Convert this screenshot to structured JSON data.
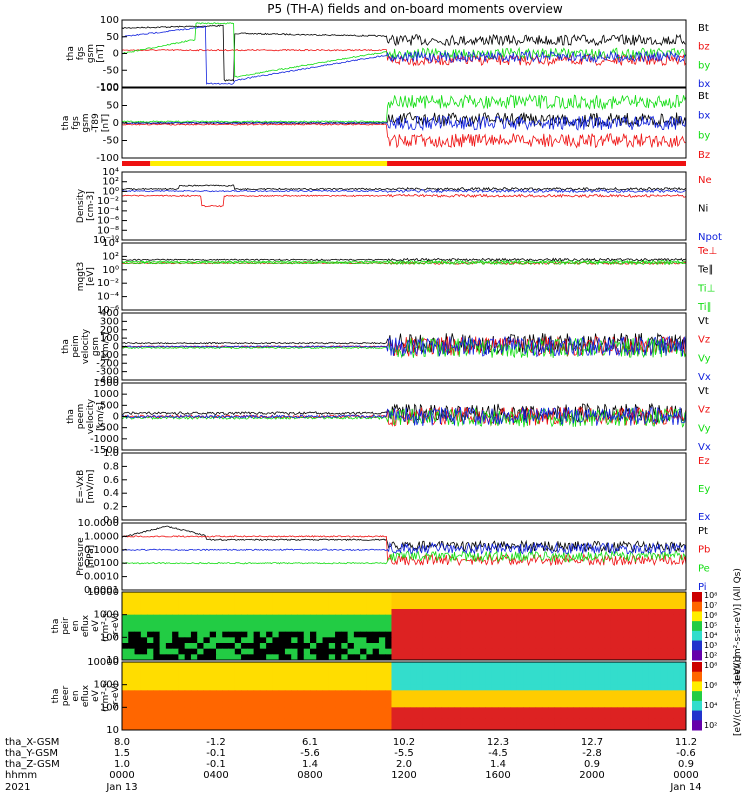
{
  "title": "P5 (TH-A) fields and on-board moments overview",
  "colors": {
    "black": "#000000",
    "red": "#ee1111",
    "green": "#11dd11",
    "blue": "#1122dd",
    "mode_yellow": "#ffee00",
    "mode_red": "#ee1111"
  },
  "chart_data": [
    {
      "type": "line",
      "panel": "fgs_gsm",
      "ylabel": [
        "tha",
        "fgs",
        "gsm",
        "[nT]"
      ],
      "ylim": [
        -100,
        100
      ],
      "yticks": [
        "100",
        "50",
        "0",
        "-50",
        "-100"
      ],
      "series": [
        {
          "name": "Bt",
          "color": "#000000"
        },
        {
          "name": "bz",
          "color": "#ee1111"
        },
        {
          "name": "by",
          "color": "#11dd11"
        },
        {
          "name": "bx",
          "color": "#1122dd"
        }
      ]
    },
    {
      "type": "line",
      "panel": "fgs_gsm_t89",
      "ylabel": [
        "tha",
        "fgs",
        "gsm",
        "-T89",
        "[nT]"
      ],
      "ylim": [
        -120,
        120
      ],
      "yticks": [
        "100",
        "50",
        "0",
        "-50",
        "-100"
      ],
      "series": [
        {
          "name": "Bt",
          "color": "#000000"
        },
        {
          "name": "bx",
          "color": "#1122dd"
        },
        {
          "name": "by",
          "color": "#11dd11"
        },
        {
          "name": "Bz",
          "color": "#ee1111"
        }
      ]
    },
    {
      "type": "line",
      "panel": "density",
      "ylabel": [
        "Density",
        "[cm-3]"
      ],
      "log": true,
      "yticks": [
        "10⁴",
        "10²",
        "10⁰",
        "10⁻²",
        "10⁻⁴",
        "10⁻⁶",
        "10⁻⁸",
        "10⁻¹⁰"
      ],
      "series": [
        {
          "name": "Ne",
          "color": "#ee1111"
        },
        {
          "name": "Ni",
          "color": "#000000"
        },
        {
          "name": "Npot",
          "color": "#1122dd"
        }
      ]
    },
    {
      "type": "line",
      "panel": "temperature",
      "ylabel": [
        "mqgt3",
        "[eV]"
      ],
      "log": true,
      "yticks": [
        "10⁴",
        "10²",
        "10⁰",
        "10⁻²",
        "10⁻⁴",
        "10⁻⁶"
      ],
      "series": [
        {
          "name": "Te⊥",
          "color": "#ee1111"
        },
        {
          "name": "Te∥",
          "color": "#000000"
        },
        {
          "name": "Ti⊥",
          "color": "#11dd11"
        },
        {
          "name": "Ti∥",
          "color": "#11dd11"
        }
      ]
    },
    {
      "type": "line",
      "panel": "peim_velocity",
      "ylabel": [
        "tha",
        "peim",
        "velocity",
        "gsm",
        "[km/s]"
      ],
      "ylim": [
        -400,
        400
      ],
      "yticks": [
        "400",
        "300",
        "200",
        "100",
        "0",
        "-100",
        "-200",
        "-300",
        "-400"
      ],
      "series": [
        {
          "name": "Vt",
          "color": "#000000"
        },
        {
          "name": "Vz",
          "color": "#ee1111"
        },
        {
          "name": "Vy",
          "color": "#11dd11"
        },
        {
          "name": "Vx",
          "color": "#1122dd"
        }
      ]
    },
    {
      "type": "line",
      "panel": "peem_velocity",
      "ylabel": [
        "tha",
        "peem",
        "velocity",
        "[km/s]"
      ],
      "ylim": [
        -1500,
        1500
      ],
      "yticks": [
        "1500",
        "1000",
        "500",
        "0",
        "-500",
        "-1000",
        "-1500"
      ],
      "series": [
        {
          "name": "Vt",
          "color": "#000000"
        },
        {
          "name": "Vz",
          "color": "#ee1111"
        },
        {
          "name": "Vy",
          "color": "#11dd11"
        },
        {
          "name": "Vx",
          "color": "#1122dd"
        }
      ]
    },
    {
      "type": "line",
      "panel": "e_field",
      "ylabel": [
        "E=-VxB",
        "[mV/m]"
      ],
      "ylim": [
        0,
        1
      ],
      "yticks": [
        "1.0",
        "0.8",
        "0.6",
        "0.4",
        "0.2",
        "0.0"
      ],
      "series": [
        {
          "name": "Ez",
          "color": "#ee1111"
        },
        {
          "name": "Ey",
          "color": "#11dd11"
        },
        {
          "name": "Ex",
          "color": "#1122dd"
        }
      ]
    },
    {
      "type": "line",
      "panel": "pressure",
      "ylabel": [
        "Pressure",
        "[nPa]"
      ],
      "log": true,
      "yticks": [
        "10.0000",
        "1.0000",
        "0.1000",
        "0.0100",
        "0.0010",
        "0.0001"
      ],
      "series": [
        {
          "name": "Pt",
          "color": "#000000"
        },
        {
          "name": "Pb",
          "color": "#ee1111"
        },
        {
          "name": "Pe",
          "color": "#11dd11"
        },
        {
          "name": "Pi",
          "color": "#1122dd"
        }
      ]
    },
    {
      "type": "heatmap",
      "panel": "peir_en_eflux",
      "ylabel": [
        "tha",
        "peir",
        "en",
        "eflux",
        "eV",
        "(cm²-s-",
        "sr-eV)"
      ],
      "log": true,
      "yticks": [
        "10000",
        "1000",
        "100",
        "10"
      ],
      "colorbar_ticks": [
        "10⁸",
        "10⁷",
        "10⁶",
        "10⁵",
        "10⁴",
        "10³",
        "10²"
      ],
      "colorbar_label": "[eV/(cm²-s-sr-eV)] (All Qs)"
    },
    {
      "type": "heatmap",
      "panel": "peer_en_eflux",
      "ylabel": [
        "tha",
        "peer",
        "en",
        "eflux",
        "eV",
        "(cm²-s-",
        "sr-eV)"
      ],
      "log": true,
      "yticks": [
        "10000",
        "1000",
        "100",
        "10"
      ],
      "colorbar_ticks": [
        "10⁸",
        "10⁶",
        "10⁴",
        "10²"
      ],
      "colorbar_label": "[eV/(cm²-s-sr-eV)]"
    }
  ],
  "time_axis": {
    "rows": [
      {
        "label": "tha_X-GSM",
        "values": [
          "8.0",
          "-1.2",
          "6.1",
          "10.2",
          "12.3",
          "12.7",
          "11.2"
        ]
      },
      {
        "label": "tha_Y-GSM",
        "values": [
          "1.5",
          "-0.1",
          "-5.6",
          "-5.5",
          "-4.5",
          "-2.8",
          "-0.6"
        ]
      },
      {
        "label": "tha_Z-GSM",
        "values": [
          "1.0",
          "-0.1",
          "1.4",
          "2.0",
          "1.4",
          "0.9",
          "0.9"
        ]
      },
      {
        "label": "hhmm",
        "values": [
          "0000",
          "0400",
          "0800",
          "1200",
          "1600",
          "2000",
          "0000"
        ]
      }
    ],
    "year": "2021",
    "start_date": "Jan 13",
    "end_date": "Jan 14"
  }
}
